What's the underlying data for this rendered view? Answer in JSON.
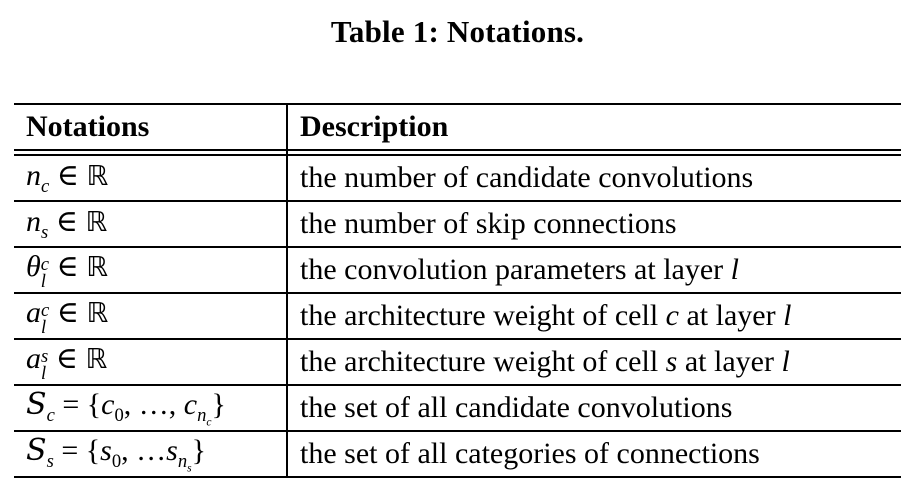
{
  "caption": "Table 1: Notations.",
  "header": {
    "col1": "Notations",
    "col2": "Description"
  },
  "rows": [
    {
      "desc": "the number of candidate convolutions"
    },
    {
      "desc": "the number of skip connections"
    },
    {
      "desc_prefix": "the convolution parameters at layer ",
      "desc_var": "l"
    },
    {
      "desc_prefix": "the architecture weight of cell ",
      "desc_var1": "c",
      "desc_mid": " at layer ",
      "desc_var2": "l"
    },
    {
      "desc_prefix": "the architecture weight of cell ",
      "desc_var1": "s",
      "desc_mid": " at layer ",
      "desc_var2": "l"
    },
    {
      "desc": "the set of all candidate convolutions"
    },
    {
      "desc": "the set of all categories of connections"
    }
  ]
}
